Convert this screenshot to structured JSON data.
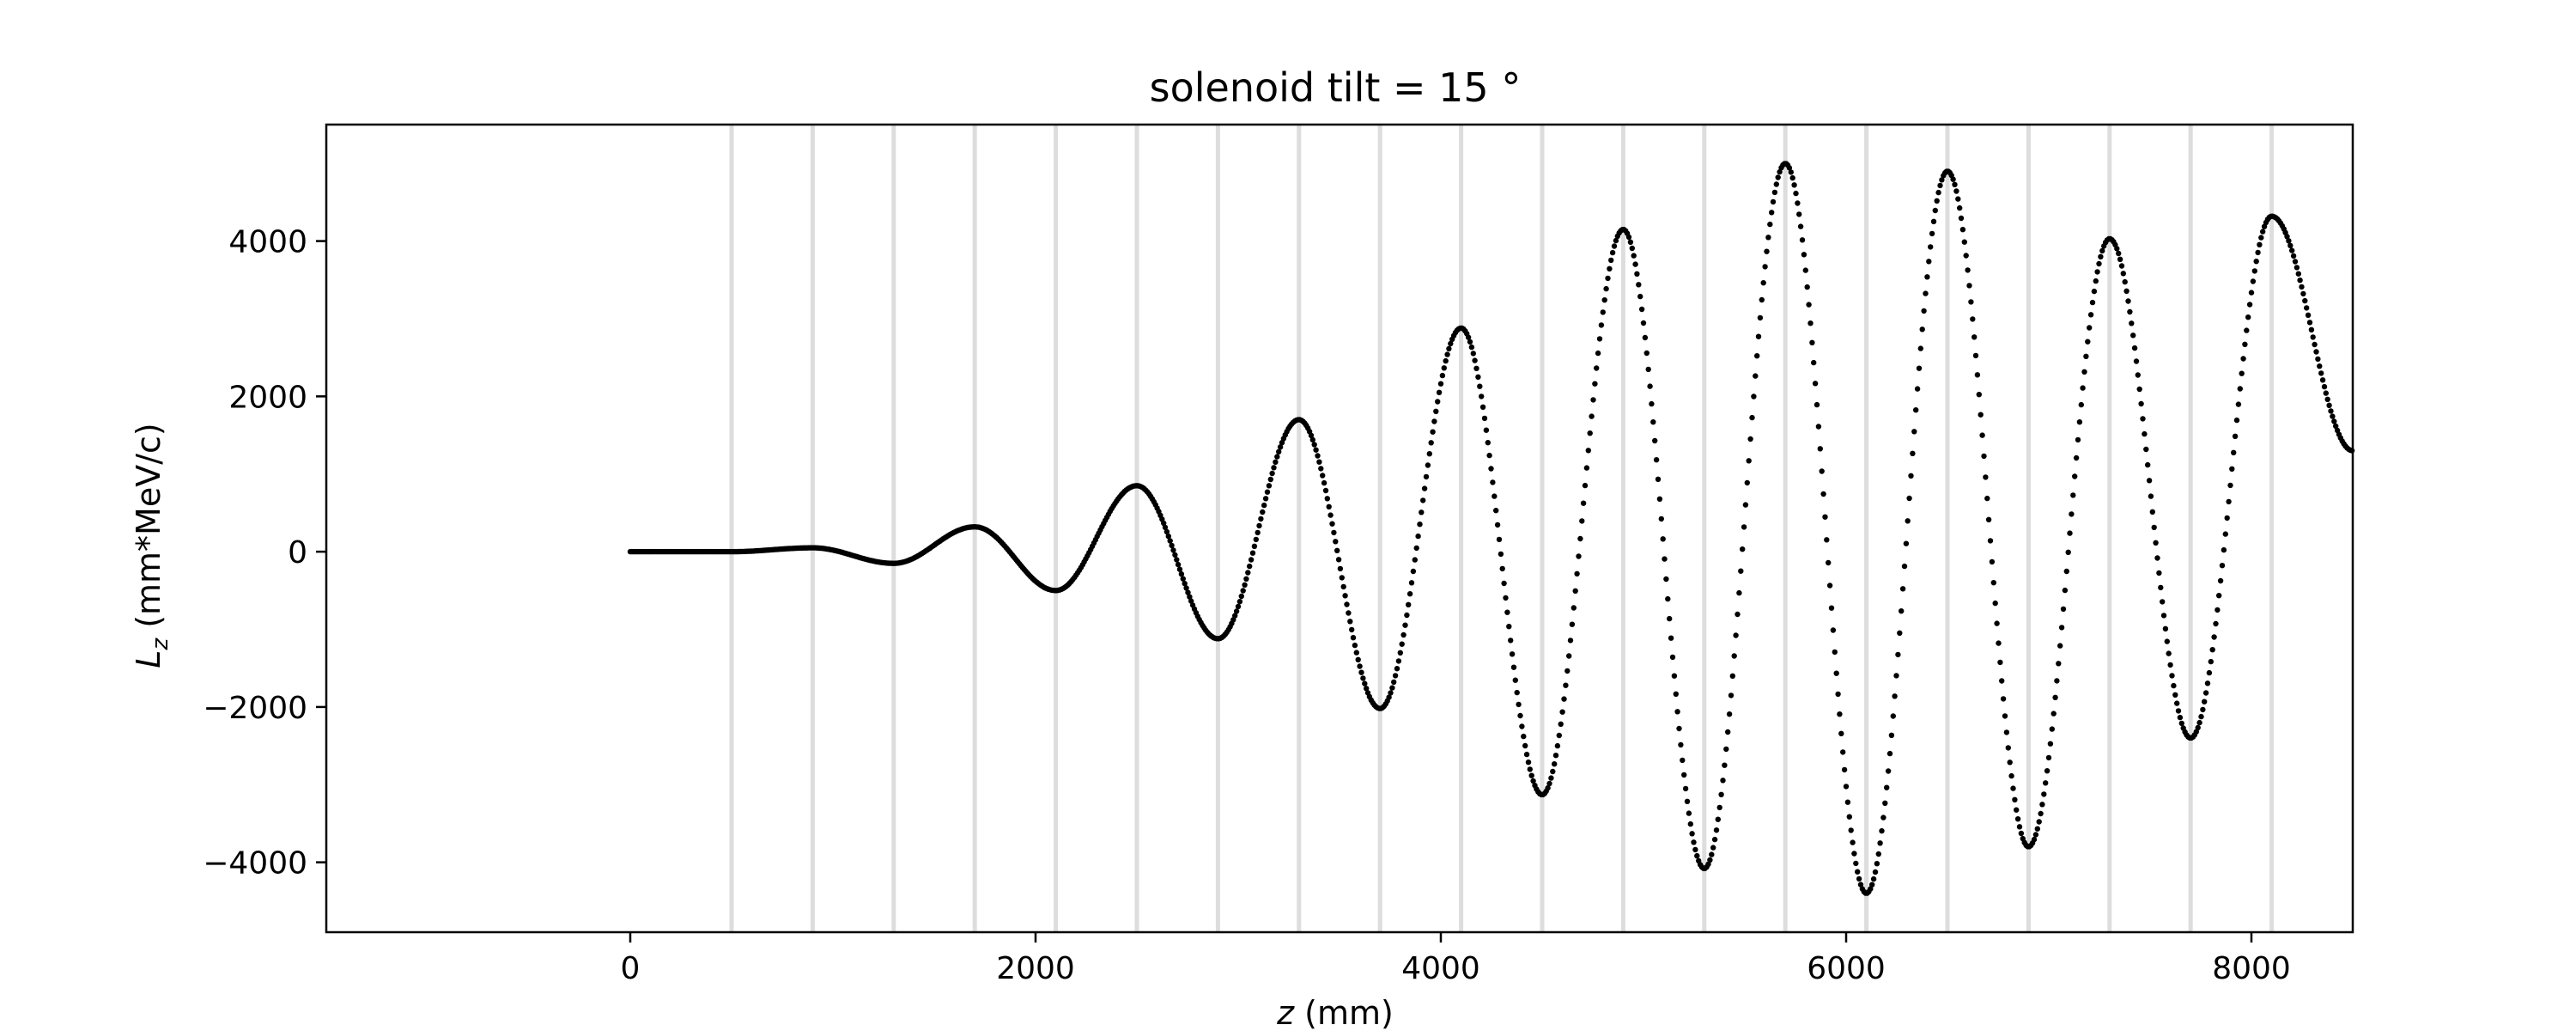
{
  "chart_data": {
    "type": "scatter",
    "title": "solenoid tilt = 15 °",
    "xlabel_var": "z",
    "xlabel_unit": " (mm)",
    "ylabel_var": "L",
    "ylabel_sub": "z",
    "ylabel_unit": " (mm*MeV/c)",
    "xlim": [
      -1500,
      8500
    ],
    "ylim": [
      -4900,
      5500
    ],
    "xticks": [
      0,
      2000,
      4000,
      6000,
      8000
    ],
    "xtick_labels": [
      "0",
      "2000",
      "4000",
      "6000",
      "8000"
    ],
    "yticks": [
      -4000,
      -2000,
      0,
      2000,
      4000
    ],
    "ytick_labels": [
      "−4000",
      "−2000",
      "0",
      "2000",
      "4000"
    ],
    "vlines": [
      500,
      900,
      1300,
      1700,
      2100,
      2500,
      2900,
      3300,
      3700,
      4100,
      4500,
      4900,
      5300,
      5700,
      6100,
      6500,
      6900,
      7300,
      7700,
      8100
    ],
    "vline_color": "#dddddd",
    "marker_color": "#000000",
    "grid": false,
    "legend": "none",
    "series": [
      {
        "x": [
          0,
          500,
          900,
          1300,
          1700,
          2100,
          2500,
          2900,
          3300,
          3700,
          4100,
          4500,
          4900,
          5300,
          5700,
          6100,
          6500,
          6900,
          7300,
          7700,
          8100,
          8500
        ],
        "y": [
          0,
          0,
          50,
          -150,
          320,
          -500,
          850,
          -1120,
          1700,
          -2020,
          2880,
          -3130,
          4150,
          -4080,
          5000,
          -4400,
          4900,
          -3800,
          4030,
          -2400,
          4320,
          1300
        ]
      }
    ]
  }
}
